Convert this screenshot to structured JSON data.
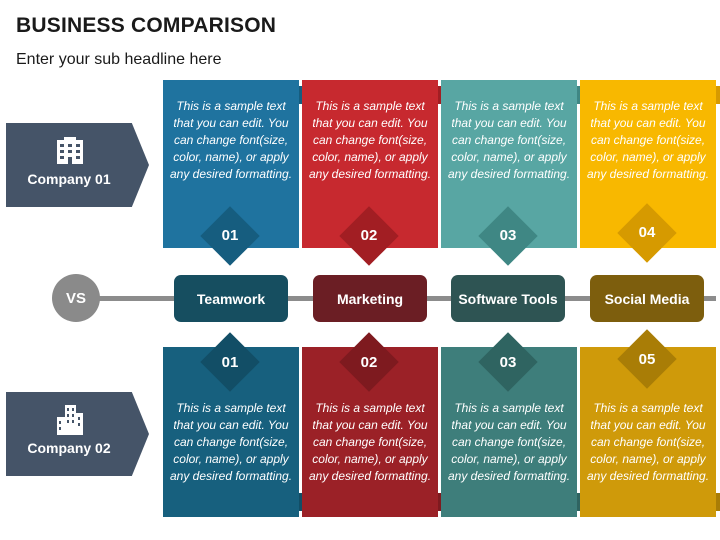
{
  "header": {
    "title": "BUSINESS COMPARISON",
    "subtitle": "Enter your sub headline here"
  },
  "companies": [
    {
      "label": "Company 01",
      "icon": "building-icon"
    },
    {
      "label": "Company 02",
      "icon": "skyscraper-icon"
    }
  ],
  "vs_label": "VS",
  "categories": [
    {
      "label": "Teamwork",
      "color": "#164e60"
    },
    {
      "label": "Marketing",
      "color": "#6b1e24"
    },
    {
      "label": "Software Tools",
      "color": "#2e5453"
    },
    {
      "label": "Social Media",
      "color": "#7d5e0d"
    }
  ],
  "top_cards": [
    {
      "text": "This is a sample text that you can edit. You can change font(size, color, name), or apply any desired formatting.",
      "number": "01",
      "color": "#1f739f",
      "dark": "#165d7f"
    },
    {
      "text": "This is a sample text that you can edit. You can change font(size, color, name), or apply any desired formatting.",
      "number": "02",
      "color": "#c7292f",
      "dark": "#a21e23"
    },
    {
      "text": "This is a sample text that you can edit. You can change font(size, color, name), or apply any desired formatting.",
      "number": "03",
      "color": "#58a6a3",
      "dark": "#3f8784"
    },
    {
      "text": "This is a sample text that you can edit. You can change font(size, color, name), or apply any desired formatting.",
      "number": "04",
      "color": "#f8b800",
      "dark": "#d69a00"
    }
  ],
  "bottom_cards": [
    {
      "text": "This is a sample text that you can edit. You can change font(size, color, name), or apply any desired formatting.",
      "number": "01",
      "color": "#17607e",
      "dark": "#124e66"
    },
    {
      "text": "This is a sample text that you can edit. You can change font(size, color, name), or apply any desired formatting.",
      "number": "02",
      "color": "#9b2127",
      "dark": "#7e1a1f"
    },
    {
      "text": "This is a sample text that you can edit. You can change font(size, color, name), or apply any desired formatting.",
      "number": "03",
      "color": "#3e7e7b",
      "dark": "#2f6461"
    },
    {
      "text": "This is a sample text that you can edit. You can change font(size, color, name), or apply any desired formatting.",
      "number": "05",
      "color": "#cf9a0a",
      "dark": "#a97d06"
    }
  ]
}
